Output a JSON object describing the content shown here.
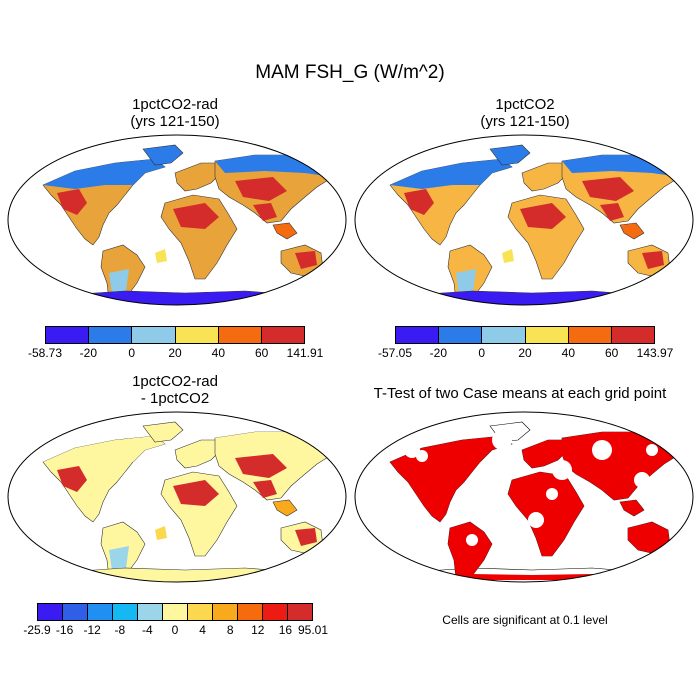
{
  "figure": {
    "title": "MAM FSH_G (W/m^2)"
  },
  "panels": [
    {
      "title_line1": "1pctCO2-rad",
      "title_line2": "(yrs 121-150)",
      "colorbar": {
        "colors": [
          "#3a1cf2",
          "#2b7be8",
          "#8ecbe8",
          "#f7e354",
          "#f56b0f",
          "#d42c2a"
        ],
        "labels": [
          "-58.73",
          "-20",
          "0",
          "20",
          "40",
          "60",
          "141.91"
        ]
      },
      "fill": {
        "north": "#2b7be8",
        "land": "#e8a33a",
        "hot": "#d42c2a",
        "warm": "#f56b0f",
        "cool": "#8ecbe8",
        "ant": "#3a1cf2",
        "yellow": "#f7e354"
      }
    },
    {
      "title_line1": "1pctCO2",
      "title_line2": "(yrs 121-150)",
      "colorbar": {
        "colors": [
          "#3a1cf2",
          "#2b7be8",
          "#8ecbe8",
          "#f7e354",
          "#f56b0f",
          "#d42c2a"
        ],
        "labels": [
          "-57.05",
          "-20",
          "0",
          "20",
          "40",
          "60",
          "143.97"
        ]
      },
      "fill": {
        "north": "#2b7be8",
        "land": "#f7b544",
        "hot": "#d42c2a",
        "warm": "#f56b0f",
        "cool": "#8ecbe8",
        "ant": "#3a1cf2",
        "yellow": "#f7e354"
      }
    },
    {
      "title_line1": "1pctCO2-rad",
      "title_line2": "- 1pctCO2",
      "colorbar": {
        "colors": [
          "#3a1cf2",
          "#2f5fe6",
          "#1f8ff2",
          "#15b8f2",
          "#9ad5ea",
          "#fff7a0",
          "#fcd84e",
          "#f9a91c",
          "#f76b0f",
          "#ee1a14",
          "#d42c2a"
        ],
        "labels": [
          "-25.9",
          "-16",
          "-12",
          "-8",
          "-4",
          "0",
          "4",
          "8",
          "12",
          "16",
          "95.01"
        ]
      },
      "fill": {
        "north": "#fff7a0",
        "land": "#fff7a0",
        "hot": "#d42c2a",
        "warm": "#f9a91c",
        "cool": "#9ad5ea",
        "ant": "#fff7a0",
        "yellow": "#fcd84e"
      }
    },
    {
      "title_line1": "T-Test of two Case means at each grid point",
      "note": "Cells are significant at 0.1 level",
      "fill": {
        "sig": "#ee0000"
      }
    }
  ]
}
